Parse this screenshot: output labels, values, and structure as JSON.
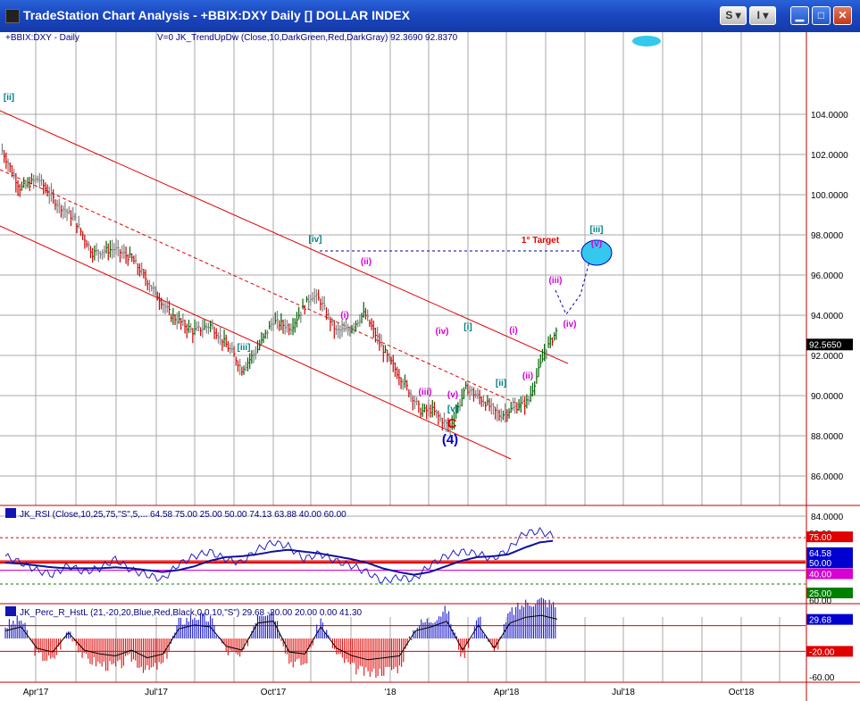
{
  "window": {
    "title": "TradeStation Chart Analysis - +BBIX:DXY Daily [] DOLLAR INDEX",
    "buttons": [
      "S",
      "I",
      "minimize",
      "maximize",
      "close"
    ]
  },
  "chart_data": [
    {
      "type": "line",
      "panel": "price",
      "symbol_label": "+BBIX:DXY - Daily",
      "indicator_label": "V=0  JK_TrendUpDw (Close,10,DarkGreen,Red,DarkGray)   92.3690  92.8370",
      "ylim": [
        83,
        105.5
      ],
      "y_ticks": [
        "104.0000",
        "102.0000",
        "100.0000",
        "98.0000",
        "96.0000",
        "94.0000",
        "92.0000",
        "90.0000",
        "88.0000",
        "86.0000",
        "84.0000"
      ],
      "last_price": "92.5650",
      "x_ticks": [
        "Apr'17",
        "Jul'17",
        "Oct'17",
        "'18",
        "Apr'18",
        "Jul'18",
        "Oct'18"
      ],
      "series": [
        {
          "dates": [
            "2017-03-06",
            "2017-03-20",
            "2017-04-03",
            "2017-04-17",
            "2017-05-01",
            "2017-05-15",
            "2017-06-01",
            "2017-06-15",
            "2017-07-01",
            "2017-07-15",
            "2017-08-01",
            "2017-08-15",
            "2017-09-01",
            "2017-09-08",
            "2017-09-20",
            "2017-10-02",
            "2017-10-16",
            "2017-11-01",
            "2017-11-07",
            "2017-11-20",
            "2017-12-01",
            "2017-12-12",
            "2017-12-29",
            "2018-01-15",
            "2018-01-25",
            "2018-02-02",
            "2018-02-16",
            "2018-03-01",
            "2018-03-15",
            "2018-03-27",
            "2018-04-10",
            "2018-04-18",
            "2018-05-01",
            "2018-05-10"
          ],
          "values": [
            102.2,
            100.3,
            100.8,
            99.6,
            98.8,
            97.1,
            97.3,
            96.8,
            95.3,
            94.0,
            93.2,
            93.5,
            92.1,
            91.3,
            92.3,
            93.7,
            93.4,
            95.0,
            94.8,
            93.2,
            93.3,
            94.1,
            92.0,
            90.3,
            89.2,
            89.3,
            88.4,
            90.4,
            89.7,
            89.0,
            89.5,
            89.7,
            92.2,
            93.2
          ]
        }
      ],
      "annotations": [
        {
          "text": "[ii]",
          "color": "#008080"
        },
        {
          "text": "[iii]",
          "color": "#008080"
        },
        {
          "text": "[iv]",
          "color": "#008080"
        },
        {
          "text": "(ii)",
          "color": "#d400d4"
        },
        {
          "text": "(i)",
          "color": "#d400d4"
        },
        {
          "text": "(iv)",
          "color": "#d400d4"
        },
        {
          "text": "(iii)",
          "color": "#d400d4"
        },
        {
          "text": "(v)",
          "color": "#d400d4"
        },
        {
          "text": "[v]",
          "color": "#008080"
        },
        {
          "text": "C",
          "color": "#e00000"
        },
        {
          "text": "(4)",
          "color": "#0000d0"
        },
        {
          "text": "[i]",
          "color": "#008080"
        },
        {
          "text": "(i)",
          "color": "#d400d4"
        },
        {
          "text": "[ii]",
          "color": "#008080"
        },
        {
          "text": "(ii)",
          "color": "#d400d4"
        },
        {
          "text": "(iii)",
          "color": "#d400d4"
        },
        {
          "text": "(iv)",
          "color": "#d400d4"
        },
        {
          "text": "1° Target",
          "color": "#e00000"
        },
        {
          "text": "[iii]",
          "color": "#008080"
        },
        {
          "text": "(v)",
          "color": "#d400d4"
        }
      ]
    },
    {
      "type": "line",
      "panel": "rsi",
      "label": "JK_RSI (Close,10,25,75,\"S\",5,...  64.58  75.00  25.00  50.00  74.13  63.88  40.00  60.00",
      "ylim": [
        20,
        85
      ],
      "levels": [
        {
          "value": "75.00",
          "color": "#e00000"
        },
        {
          "value": "64.58",
          "color": "#0000d0"
        },
        {
          "value": "50.00",
          "color": "#0000d0"
        },
        {
          "value": "40.00",
          "color": "#d400d4"
        },
        {
          "value": "25.00",
          "color": "#008000"
        }
      ],
      "top_tick": "80.00",
      "series": [
        {
          "name": "RSI",
          "values": [
            55,
            48,
            40,
            35,
            45,
            38,
            42,
            52,
            40,
            35,
            30,
            46,
            55,
            60,
            52,
            48,
            62,
            70,
            66,
            52,
            58,
            50,
            45,
            38,
            28,
            32,
            30,
            45,
            55,
            60,
            58,
            52,
            62,
            80,
            82,
            76
          ]
        },
        {
          "name": "RSI average",
          "values": [
            48,
            47,
            45,
            43,
            42,
            42,
            42,
            43,
            42,
            40,
            38,
            40,
            44,
            50,
            54,
            55,
            57,
            60,
            62,
            60,
            58,
            55,
            52,
            48,
            42,
            38,
            35,
            38,
            44,
            50,
            54,
            55,
            57,
            64,
            70,
            72
          ]
        }
      ]
    },
    {
      "type": "bar",
      "panel": "percent_r",
      "label": "JK_Perc_R_HstL (21,-20,20,Blue,Red,Black,0,0,10,\"S\")   29.68  -20.00  20.00  0.00  41.30",
      "ylim": [
        -70,
        70
      ],
      "levels": [
        {
          "value": "29.68",
          "color": "#0000d0"
        },
        {
          "value": "-20.00",
          "color": "#e00000"
        }
      ],
      "y_ticks": [
        "60.00",
        "-60.00"
      ],
      "values": [
        20,
        30,
        -25,
        -35,
        15,
        -30,
        -40,
        -45,
        -30,
        -50,
        -40,
        25,
        35,
        30,
        -20,
        -30,
        40,
        45,
        -35,
        -40,
        30,
        -25,
        -45,
        -55,
        -50,
        -45,
        20,
        30,
        45,
        -30,
        35,
        -25,
        40,
        55,
        60,
        50
      ]
    }
  ]
}
